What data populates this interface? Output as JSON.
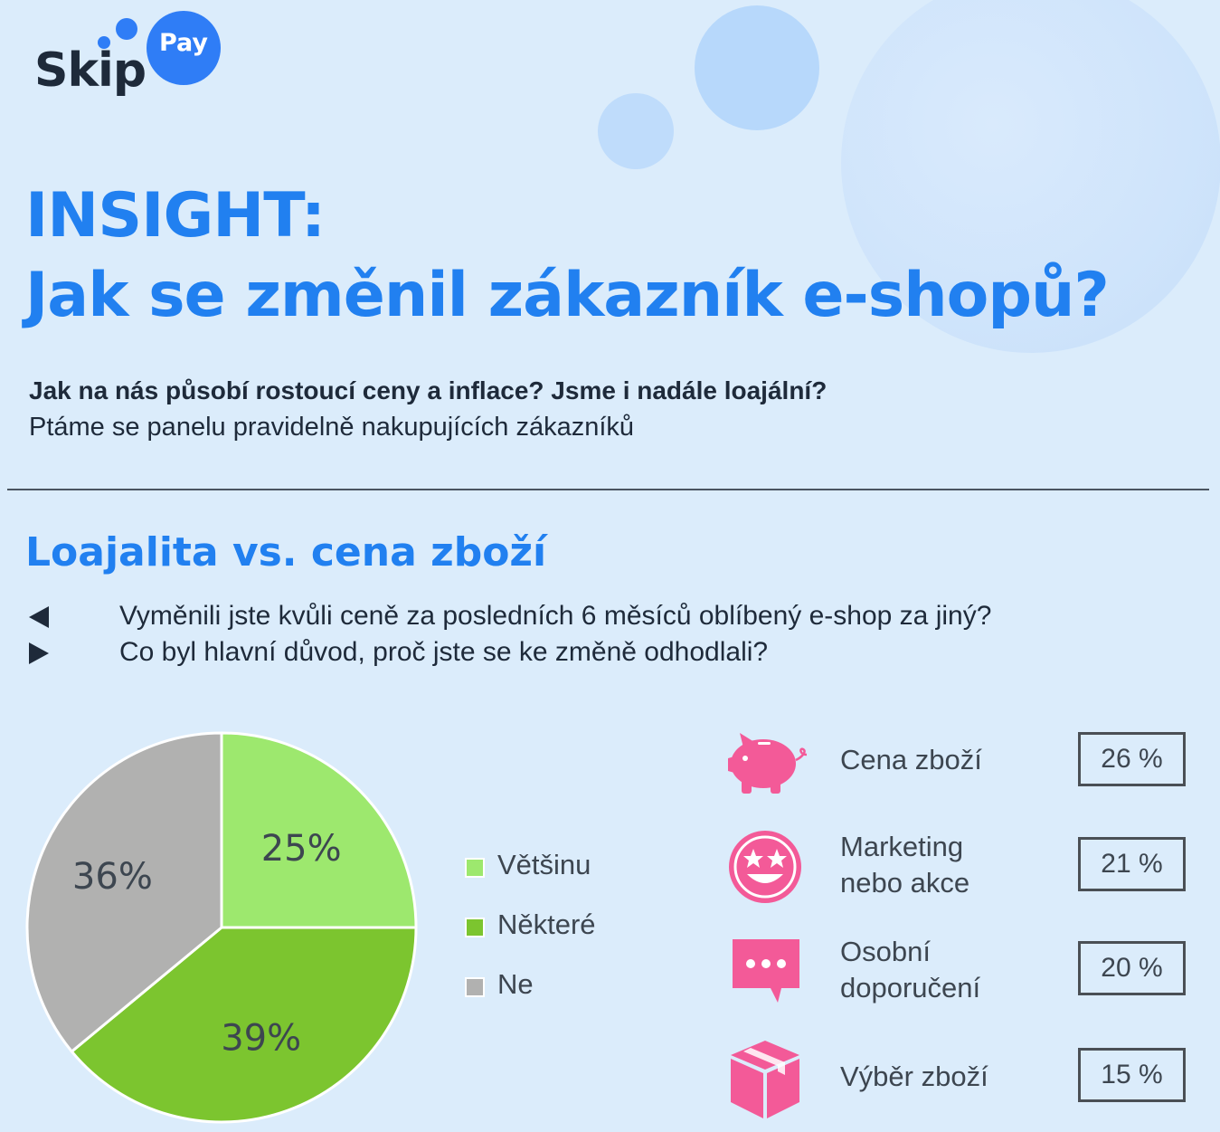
{
  "logo": {
    "word": "Skip",
    "badge": "Pay"
  },
  "header": {
    "title_line1": "INSIGHT:",
    "title_line2": "Jak se změnil zákazník e-shopů?",
    "subtitle_bold": "Jak na nás působí rostoucí ceny a inflace? Jsme i nadále loajální?",
    "subtitle": "Ptáme se panelu pravidelně nakupujících zákazníků"
  },
  "section": {
    "title": "Loajalita vs. cena zboží",
    "questions": [
      "Vyměnili jste kvůli ceně za posledních 6 měsíců oblíbený e-shop za jiný?",
      "Co byl hlavní důvod, proč jste se ke změně odhodlali?"
    ]
  },
  "chart_data": [
    {
      "type": "pie",
      "title": "",
      "categories": [
        "Většinu",
        "Některé",
        "Ne"
      ],
      "values": [
        25,
        39,
        36
      ],
      "labels": [
        "25%",
        "39%",
        "36%"
      ],
      "colors": [
        "#9de86e",
        "#7cc52f",
        "#b1b1b0"
      ],
      "legend_position": "right"
    },
    {
      "type": "table",
      "title": "",
      "rows": [
        {
          "reason": "Cena zboží",
          "value": 26,
          "label": "26 %",
          "icon": "piggy-bank-icon"
        },
        {
          "reason": "Marketing nebo akce",
          "line1": "Marketing",
          "line2": "nebo akce",
          "value": 21,
          "label": "21 %",
          "icon": "star-eyes-emoji-icon"
        },
        {
          "reason": "Osobní doporučení",
          "line1": "Osobní",
          "line2": "doporučení",
          "value": 20,
          "label": "20 %",
          "icon": "chat-bubble-icon"
        },
        {
          "reason": "Výběr zboží",
          "value": 15,
          "label": "15 %",
          "icon": "package-box-icon"
        }
      ],
      "icon_color": "#f35a98"
    }
  ],
  "colors": {
    "accent": "#2180f0",
    "background": "#dbecfb",
    "text": "#1e2a3a"
  }
}
